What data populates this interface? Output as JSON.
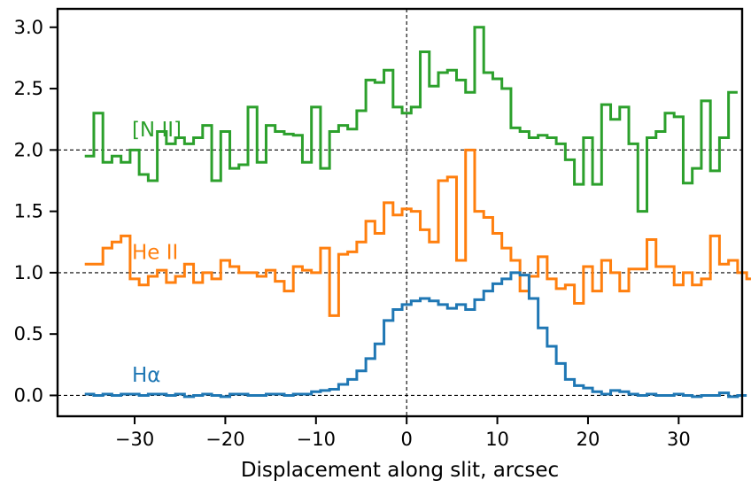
{
  "chart_data": {
    "type": "line",
    "step": true,
    "xlabel": "Displacement along slit, arcsec",
    "ylabel": "",
    "xlim": [
      -38.5,
      37.0
    ],
    "ylim": [
      -0.17,
      3.15
    ],
    "xticks": [
      -30,
      -20,
      -10,
      0,
      10,
      20,
      30
    ],
    "yticks": [
      0.0,
      0.5,
      1.0,
      1.5,
      2.0,
      2.5,
      3.0
    ],
    "xtick_labels": [
      "−30",
      "−20",
      "−10",
      "0",
      "10",
      "20",
      "30"
    ],
    "ytick_labels": [
      "0.0",
      "0.5",
      "1.0",
      "1.5",
      "2.0",
      "2.5",
      "3.0"
    ],
    "reference_lines": {
      "horizontal": [
        0.0,
        1.0,
        2.0
      ],
      "vertical": [
        0.0
      ],
      "style": "dashed",
      "color": "#000000"
    },
    "bin_width": 1.0,
    "x_start": -35.5,
    "series": [
      {
        "name": "[N II]",
        "label_position": [
          -30.3,
          2.17
        ],
        "color": "#2ca02c",
        "values": [
          1.95,
          2.3,
          1.9,
          1.95,
          1.9,
          2.0,
          1.8,
          1.75,
          2.15,
          2.05,
          2.1,
          2.05,
          2.1,
          2.2,
          1.75,
          2.15,
          1.85,
          1.88,
          2.35,
          1.9,
          2.2,
          2.15,
          2.13,
          2.12,
          1.9,
          2.35,
          1.85,
          2.15,
          2.2,
          2.17,
          2.32,
          2.57,
          2.55,
          2.65,
          2.35,
          2.3,
          2.35,
          2.8,
          2.52,
          2.63,
          2.65,
          2.57,
          2.47,
          3.0,
          2.63,
          2.58,
          2.5,
          2.18,
          2.15,
          2.1,
          2.12,
          2.1,
          2.05,
          1.92,
          1.72,
          2.1,
          1.72,
          2.37,
          2.25,
          2.35,
          2.05,
          1.5,
          2.1,
          2.15,
          2.3,
          2.27,
          1.73,
          1.85,
          2.4,
          1.83,
          2.1,
          2.47
        ]
      },
      {
        "name": "He II",
        "label_position": [
          -30.3,
          1.17
        ],
        "color": "#ff7f0e",
        "values": [
          1.07,
          1.07,
          1.2,
          1.25,
          1.3,
          0.95,
          0.9,
          0.97,
          1.02,
          0.92,
          0.97,
          1.07,
          0.92,
          1.0,
          0.95,
          1.1,
          1.05,
          1.0,
          1.0,
          0.97,
          1.02,
          0.93,
          0.85,
          1.05,
          1.02,
          1.0,
          1.2,
          0.65,
          1.15,
          1.17,
          1.25,
          1.42,
          1.32,
          1.57,
          1.47,
          1.52,
          1.5,
          1.35,
          1.25,
          1.75,
          1.78,
          1.1,
          2.0,
          1.5,
          1.45,
          1.32,
          1.2,
          1.1,
          0.85,
          0.97,
          1.13,
          0.95,
          0.87,
          0.9,
          0.75,
          1.05,
          0.85,
          1.1,
          1.0,
          0.85,
          1.03,
          1.03,
          1.27,
          1.05,
          1.05,
          0.9,
          1.0,
          0.9,
          0.95,
          1.3,
          1.07,
          1.1,
          1.0,
          0.95
        ]
      },
      {
        "name": "Hα",
        "label_position": [
          -30.3,
          0.17
        ],
        "color": "#1f77b4",
        "values": [
          0.01,
          0.0,
          0.01,
          0.0,
          0.01,
          0.01,
          0.0,
          0.01,
          0.01,
          0.0,
          0.01,
          -0.01,
          0.0,
          0.01,
          0.0,
          -0.01,
          0.01,
          0.01,
          0.0,
          0.0,
          0.01,
          0.01,
          0.0,
          0.01,
          0.01,
          0.03,
          0.04,
          0.05,
          0.09,
          0.13,
          0.2,
          0.3,
          0.42,
          0.61,
          0.7,
          0.74,
          0.77,
          0.79,
          0.77,
          0.74,
          0.71,
          0.74,
          0.7,
          0.78,
          0.85,
          0.91,
          0.95,
          1.0,
          0.98,
          0.79,
          0.55,
          0.4,
          0.26,
          0.13,
          0.08,
          0.06,
          0.03,
          0.01,
          0.04,
          0.03,
          0.01,
          0.0,
          0.01,
          0.0,
          0.0,
          0.01,
          0.0,
          -0.01,
          0.0,
          0.0,
          0.02,
          -0.01,
          0.0
        ]
      }
    ]
  }
}
